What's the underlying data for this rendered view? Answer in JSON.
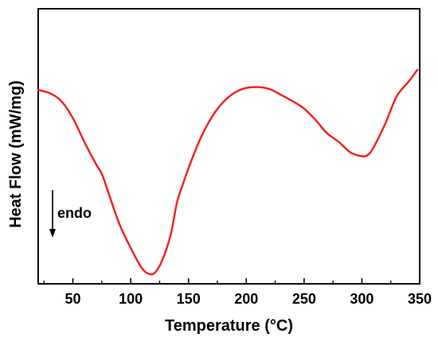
{
  "chart_data": {
    "type": "line",
    "title": "",
    "xlabel": "Temperature (°C)",
    "ylabel": "Heat Flow (mW/mg)",
    "xlim": [
      20,
      350
    ],
    "ylim": [
      0,
      1
    ],
    "x_ticks": [
      50,
      100,
      150,
      200,
      250,
      300,
      350
    ],
    "y_ticks_labeled": false,
    "grid": false,
    "legend": "none",
    "annotation": {
      "text": "endo",
      "arrow_direction": "down"
    },
    "series": [
      {
        "color": "#ff1a1a",
        "x": [
          20,
          30,
          40,
          50,
          60,
          70,
          75,
          80,
          90,
          100,
          105,
          110,
          115,
          120,
          125,
          128,
          130,
          135,
          140,
          145,
          150,
          160,
          170,
          180,
          190,
          200,
          210,
          220,
          230,
          240,
          250,
          260,
          270,
          280,
          290,
          300,
          305,
          310,
          320,
          330,
          340,
          348
        ],
        "y": [
          0.705,
          0.693,
          0.664,
          0.602,
          0.515,
          0.435,
          0.4,
          0.34,
          0.22,
          0.13,
          0.09,
          0.055,
          0.037,
          0.037,
          0.065,
          0.094,
          0.115,
          0.185,
          0.295,
          0.36,
          0.42,
          0.525,
          0.605,
          0.66,
          0.695,
          0.712,
          0.715,
          0.708,
          0.687,
          0.664,
          0.637,
          0.595,
          0.547,
          0.516,
          0.478,
          0.464,
          0.468,
          0.495,
          0.58,
          0.681,
          0.733,
          0.778
        ]
      }
    ]
  }
}
